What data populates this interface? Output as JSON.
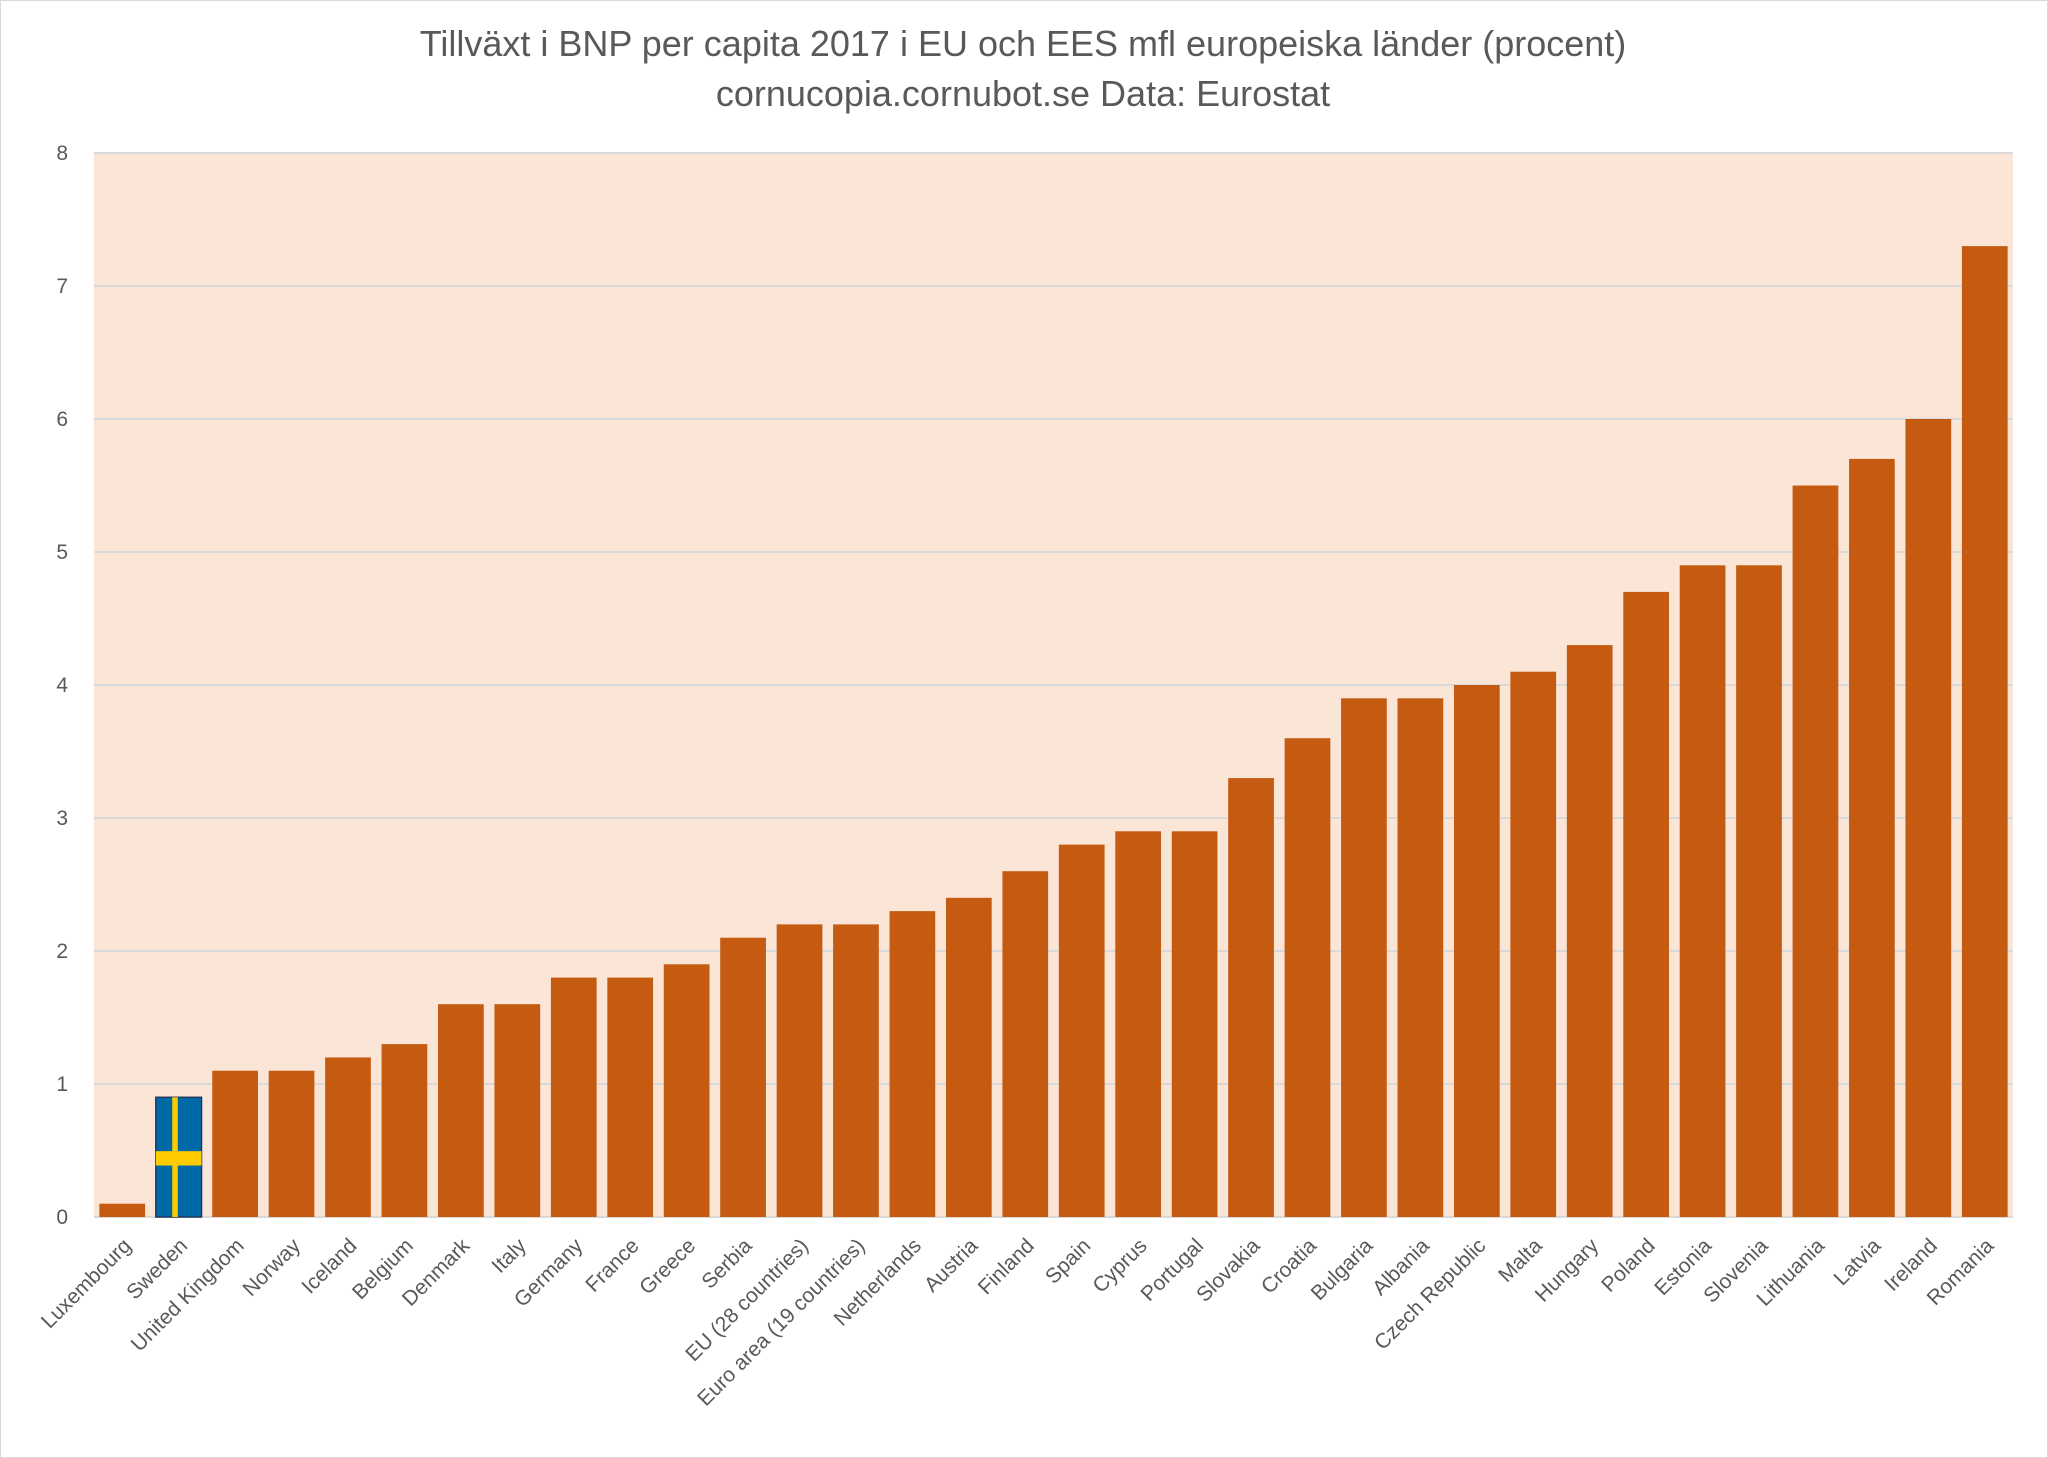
{
  "chart_data": {
    "type": "bar",
    "title": "Tillväxt i BNP per capita 2017 i EU och EES mfl europeiska länder (procent)",
    "subtitle": "cornucopia.cornubot.se Data: Eurostat",
    "xlabel": "",
    "ylabel": "",
    "ylim": [
      0,
      8
    ],
    "yticks": [
      0,
      1,
      2,
      3,
      4,
      5,
      6,
      7,
      8
    ],
    "grid": true,
    "legend": "none",
    "categories": [
      "Luxembourg",
      "Sweden",
      "United Kingdom",
      "Norway",
      "Iceland",
      "Belgium",
      "Denmark",
      "Italy",
      "Germany",
      "France",
      "Greece",
      "Serbia",
      "EU (28 countries)",
      "Euro area (19 countries)",
      "Netherlands",
      "Austria",
      "Finland",
      "Spain",
      "Cyprus",
      "Portugal",
      "Slovakia",
      "Croatia",
      "Bulgaria",
      "Albania",
      "Czech Republic",
      "Malta",
      "Hungary",
      "Poland",
      "Estonia",
      "Slovenia",
      "Lithuania",
      "Latvia",
      "Ireland",
      "Romania"
    ],
    "values": [
      0.1,
      0.9,
      1.1,
      1.1,
      1.2,
      1.3,
      1.6,
      1.6,
      1.8,
      1.8,
      1.9,
      2.1,
      2.2,
      2.2,
      2.3,
      2.4,
      2.6,
      2.8,
      2.9,
      2.9,
      3.3,
      3.6,
      3.9,
      3.9,
      4.0,
      4.1,
      4.3,
      4.7,
      4.9,
      4.9,
      5.5,
      5.7,
      6.0,
      7.3
    ],
    "highlight_category": "Sweden",
    "colors": {
      "bar": "#c55a11",
      "plot_background": "#fbe5d6",
      "gridline": "#d9d9d9",
      "text": "#595959",
      "flag_blue": "#006aa7",
      "flag_yellow": "#fecc00"
    }
  }
}
